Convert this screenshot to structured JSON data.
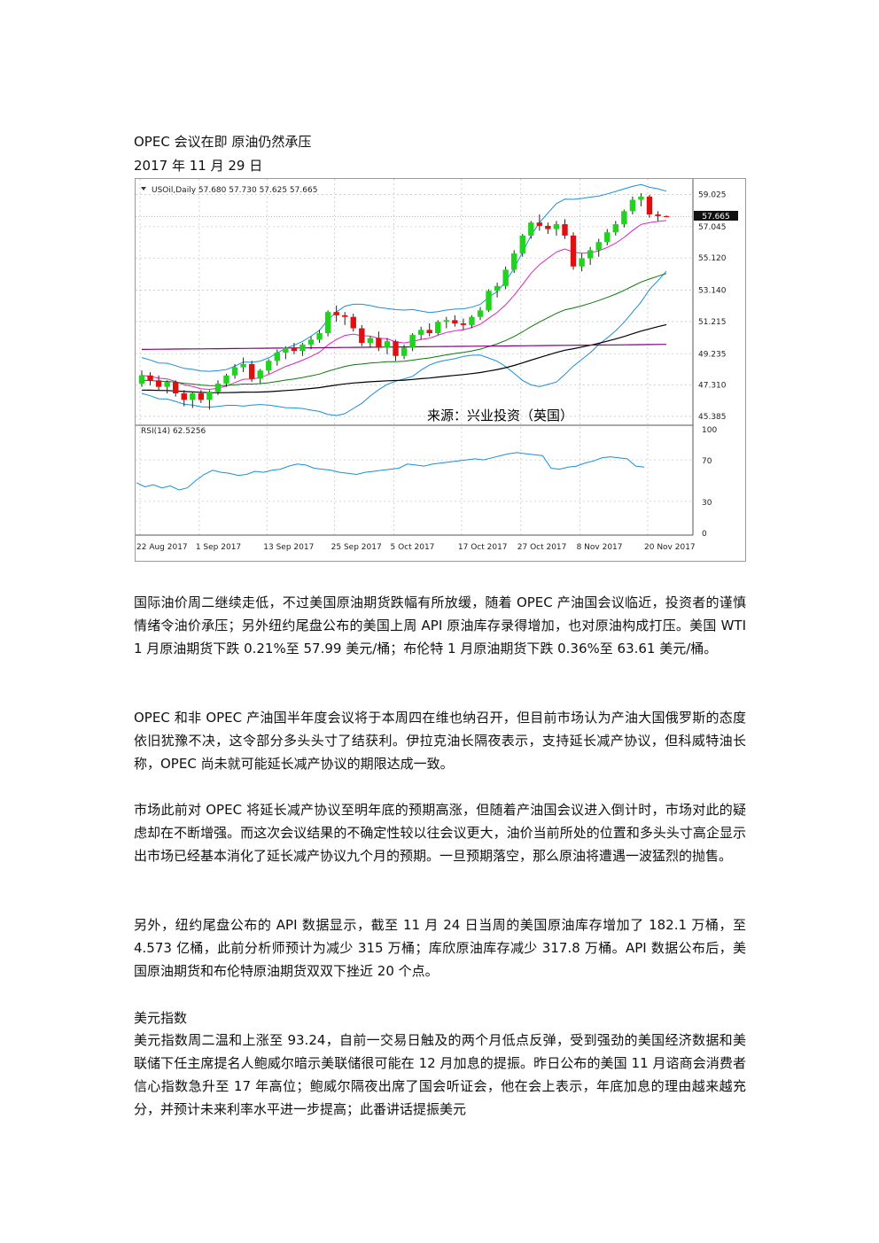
{
  "article": {
    "title": "OPEC 会议在即  原油仍然承压",
    "date": "2017 年 11 月 29 日",
    "paragraphs": [
      "国际油价周二继续走低，不过美国原油期货跌幅有所放缓，随着 OPEC 产油国会议临近，投资者的谨慎情绪令油价承压；另外纽约尾盘公布的美国上周 API 原油库存录得增加，也对原油构成打压。美国 WTI 1 月原油期货下跌 0.21%至 57.99 美元/桶；布伦特 1 月原油期货下跌 0.36%至 63.61 美元/桶。",
      "OPEC 和非 OPEC 产油国半年度会议将于本周四在维也纳召开，但目前市场认为产油大国俄罗斯的态度依旧犹豫不决，这令部分多头头寸了结获利。伊拉克油长隔夜表示，支持延长减产协议，但科威特油长称，OPEC 尚未就可能延长减产协议的期限达成一致。",
      "市场此前对 OPEC 将延长减产协议至明年底的预期高涨，但随着产油国会议进入倒计时，市场对此的疑虑却在不断增强。而这次会议结果的不确定性较以往会议更大，油价当前所处的位置和多头头寸高企显示出市场已经基本消化了延长减产协议九个月的预期。一旦预期落空，那么原油将遭遇一波猛烈的抛售。",
      "另外，纽约尾盘公布的 API 数据显示，截至 11 月 24 日当周的美国原油库存增加了 182.1 万桶，至 4.573 亿桶，此前分析师预计为减少 315 万桶；库欣原油库存减少 317.8 万桶。API 数据公布后，美国原油期货和布伦特原油期货双双下挫近 20 个点。"
    ],
    "section_heading": "美元指数",
    "section_paragraph": "美元指数周二温和上涨至 93.24，自前一交易日触及的两个月低点反弹，受到强劲的美国经济数据和美联储下任主席提名人鲍威尔暗示美联储很可能在 12 月加息的提振。昨日公布的美国 11 月谘商会消费者信心指数急升至 17 年高位；鲍威尔隔夜出席了国会听证会，他在会上表示，年底加息的理由越来越充分，并预计未来利率水平进一步提高；此番讲话提振美元"
  },
  "chart_data": {
    "type": "candlestick",
    "header": "USOil,Daily  57.680 57.730 57.625 57.665",
    "current_price": "57.665",
    "source_label": "来源：兴业投资（英国）",
    "price_axis": {
      "ticks": [
        "59.025",
        "57.045",
        "55.120",
        "53.140",
        "51.215",
        "49.235",
        "47.310",
        "45.385"
      ],
      "ylim": [
        45.0,
        59.6
      ]
    },
    "rsi": {
      "label": "RSI(14) 62.5256",
      "ticks": [
        "100",
        "70",
        "30",
        "0"
      ],
      "values": [
        48,
        44,
        46,
        43,
        45,
        41,
        43,
        50,
        56,
        60,
        58,
        57,
        55,
        56,
        59,
        58,
        60,
        61,
        64,
        66,
        65,
        62,
        61,
        60,
        58,
        57,
        56,
        58,
        59,
        60,
        61,
        62,
        66,
        65,
        64,
        66,
        67,
        68,
        69,
        70,
        71,
        70,
        72,
        74,
        76,
        77,
        76,
        75,
        74,
        62,
        61,
        63,
        64,
        67,
        69,
        72,
        73,
        72,
        71,
        64,
        63
      ]
    },
    "x_labels": [
      "22 Aug 2017",
      "1 Sep 2017",
      "13 Sep 2017",
      "25 Sep 2017",
      "5 Oct 2017",
      "17 Oct 2017",
      "27 Oct 2017",
      "8 Nov 2017",
      "20 Nov 2017"
    ],
    "colors": {
      "up": "#1fd31f",
      "down": "#e01010",
      "bollinger": "#1a8fd8",
      "ema_fast": "#e020c0",
      "ema_mid": "#0a7a0a",
      "ema_slow": "#000000",
      "sma_long": "#800080",
      "rsi": "#1a8fd8"
    },
    "candles": [
      [
        47.4,
        48.2,
        47.2,
        47.9
      ],
      [
        47.9,
        48.1,
        47.3,
        47.6
      ],
      [
        47.6,
        47.9,
        47.0,
        47.2
      ],
      [
        47.2,
        47.6,
        46.8,
        47.5
      ],
      [
        47.5,
        47.6,
        46.6,
        46.8
      ],
      [
        46.8,
        47.0,
        46.0,
        46.4
      ],
      [
        46.4,
        46.9,
        45.9,
        46.8
      ],
      [
        46.8,
        47.0,
        46.2,
        46.4
      ],
      [
        46.4,
        47.0,
        45.8,
        46.9
      ],
      [
        46.9,
        47.6,
        46.7,
        47.4
      ],
      [
        47.4,
        48.0,
        47.2,
        47.9
      ],
      [
        47.9,
        48.6,
        47.7,
        48.4
      ],
      [
        48.4,
        49.0,
        48.1,
        48.6
      ],
      [
        48.6,
        48.8,
        47.5,
        47.7
      ],
      [
        47.7,
        48.3,
        47.4,
        48.2
      ],
      [
        48.2,
        48.9,
        48.0,
        48.8
      ],
      [
        48.8,
        49.5,
        48.5,
        49.3
      ],
      [
        49.3,
        49.7,
        48.9,
        49.6
      ],
      [
        49.6,
        49.9,
        49.2,
        49.4
      ],
      [
        49.4,
        49.9,
        49.1,
        49.8
      ],
      [
        49.8,
        50.3,
        49.5,
        50.1
      ],
      [
        50.1,
        50.7,
        49.9,
        50.5
      ],
      [
        50.5,
        51.9,
        50.3,
        51.8
      ],
      [
        51.8,
        52.2,
        51.2,
        51.6
      ],
      [
        51.6,
        51.8,
        51.0,
        51.5
      ],
      [
        51.5,
        51.7,
        50.6,
        50.8
      ],
      [
        50.8,
        51.0,
        49.7,
        49.9
      ],
      [
        49.9,
        50.3,
        49.6,
        50.2
      ],
      [
        50.2,
        50.6,
        49.4,
        49.6
      ],
      [
        49.6,
        50.2,
        49.2,
        50.0
      ],
      [
        50.0,
        50.1,
        48.8,
        49.1
      ],
      [
        49.1,
        49.8,
        48.9,
        49.6
      ],
      [
        49.6,
        50.5,
        49.4,
        50.4
      ],
      [
        50.4,
        50.9,
        50.1,
        50.7
      ],
      [
        50.7,
        51.1,
        50.3,
        50.5
      ],
      [
        50.5,
        51.3,
        50.4,
        51.2
      ],
      [
        51.2,
        51.5,
        50.8,
        51.3
      ],
      [
        51.3,
        51.6,
        50.9,
        51.1
      ],
      [
        51.1,
        51.4,
        50.7,
        51.0
      ],
      [
        51.0,
        51.6,
        50.8,
        51.5
      ],
      [
        51.5,
        52.1,
        51.3,
        51.9
      ],
      [
        51.9,
        53.2,
        51.8,
        53.1
      ],
      [
        53.1,
        53.6,
        52.7,
        53.4
      ],
      [
        53.4,
        54.6,
        53.2,
        54.4
      ],
      [
        54.4,
        55.6,
        54.2,
        55.4
      ],
      [
        55.4,
        56.6,
        55.2,
        56.5
      ],
      [
        56.5,
        57.4,
        56.3,
        57.3
      ],
      [
        57.3,
        57.8,
        56.8,
        57.1
      ],
      [
        57.1,
        57.3,
        56.6,
        56.9
      ],
      [
        56.9,
        57.4,
        56.5,
        57.2
      ],
      [
        57.2,
        57.5,
        56.3,
        56.5
      ],
      [
        56.5,
        56.7,
        54.4,
        54.6
      ],
      [
        54.6,
        55.4,
        54.3,
        55.1
      ],
      [
        55.1,
        55.8,
        54.7,
        55.6
      ],
      [
        55.6,
        56.3,
        55.2,
        56.1
      ],
      [
        56.1,
        56.9,
        55.9,
        56.7
      ],
      [
        56.7,
        57.4,
        56.5,
        57.2
      ],
      [
        57.2,
        58.1,
        57.0,
        58.0
      ],
      [
        58.0,
        58.9,
        57.8,
        58.7
      ],
      [
        58.7,
        59.1,
        58.3,
        58.9
      ],
      [
        58.9,
        59.0,
        57.6,
        57.8
      ],
      [
        57.8,
        58.0,
        57.4,
        57.7
      ],
      [
        57.7,
        57.73,
        57.625,
        57.665
      ]
    ]
  }
}
